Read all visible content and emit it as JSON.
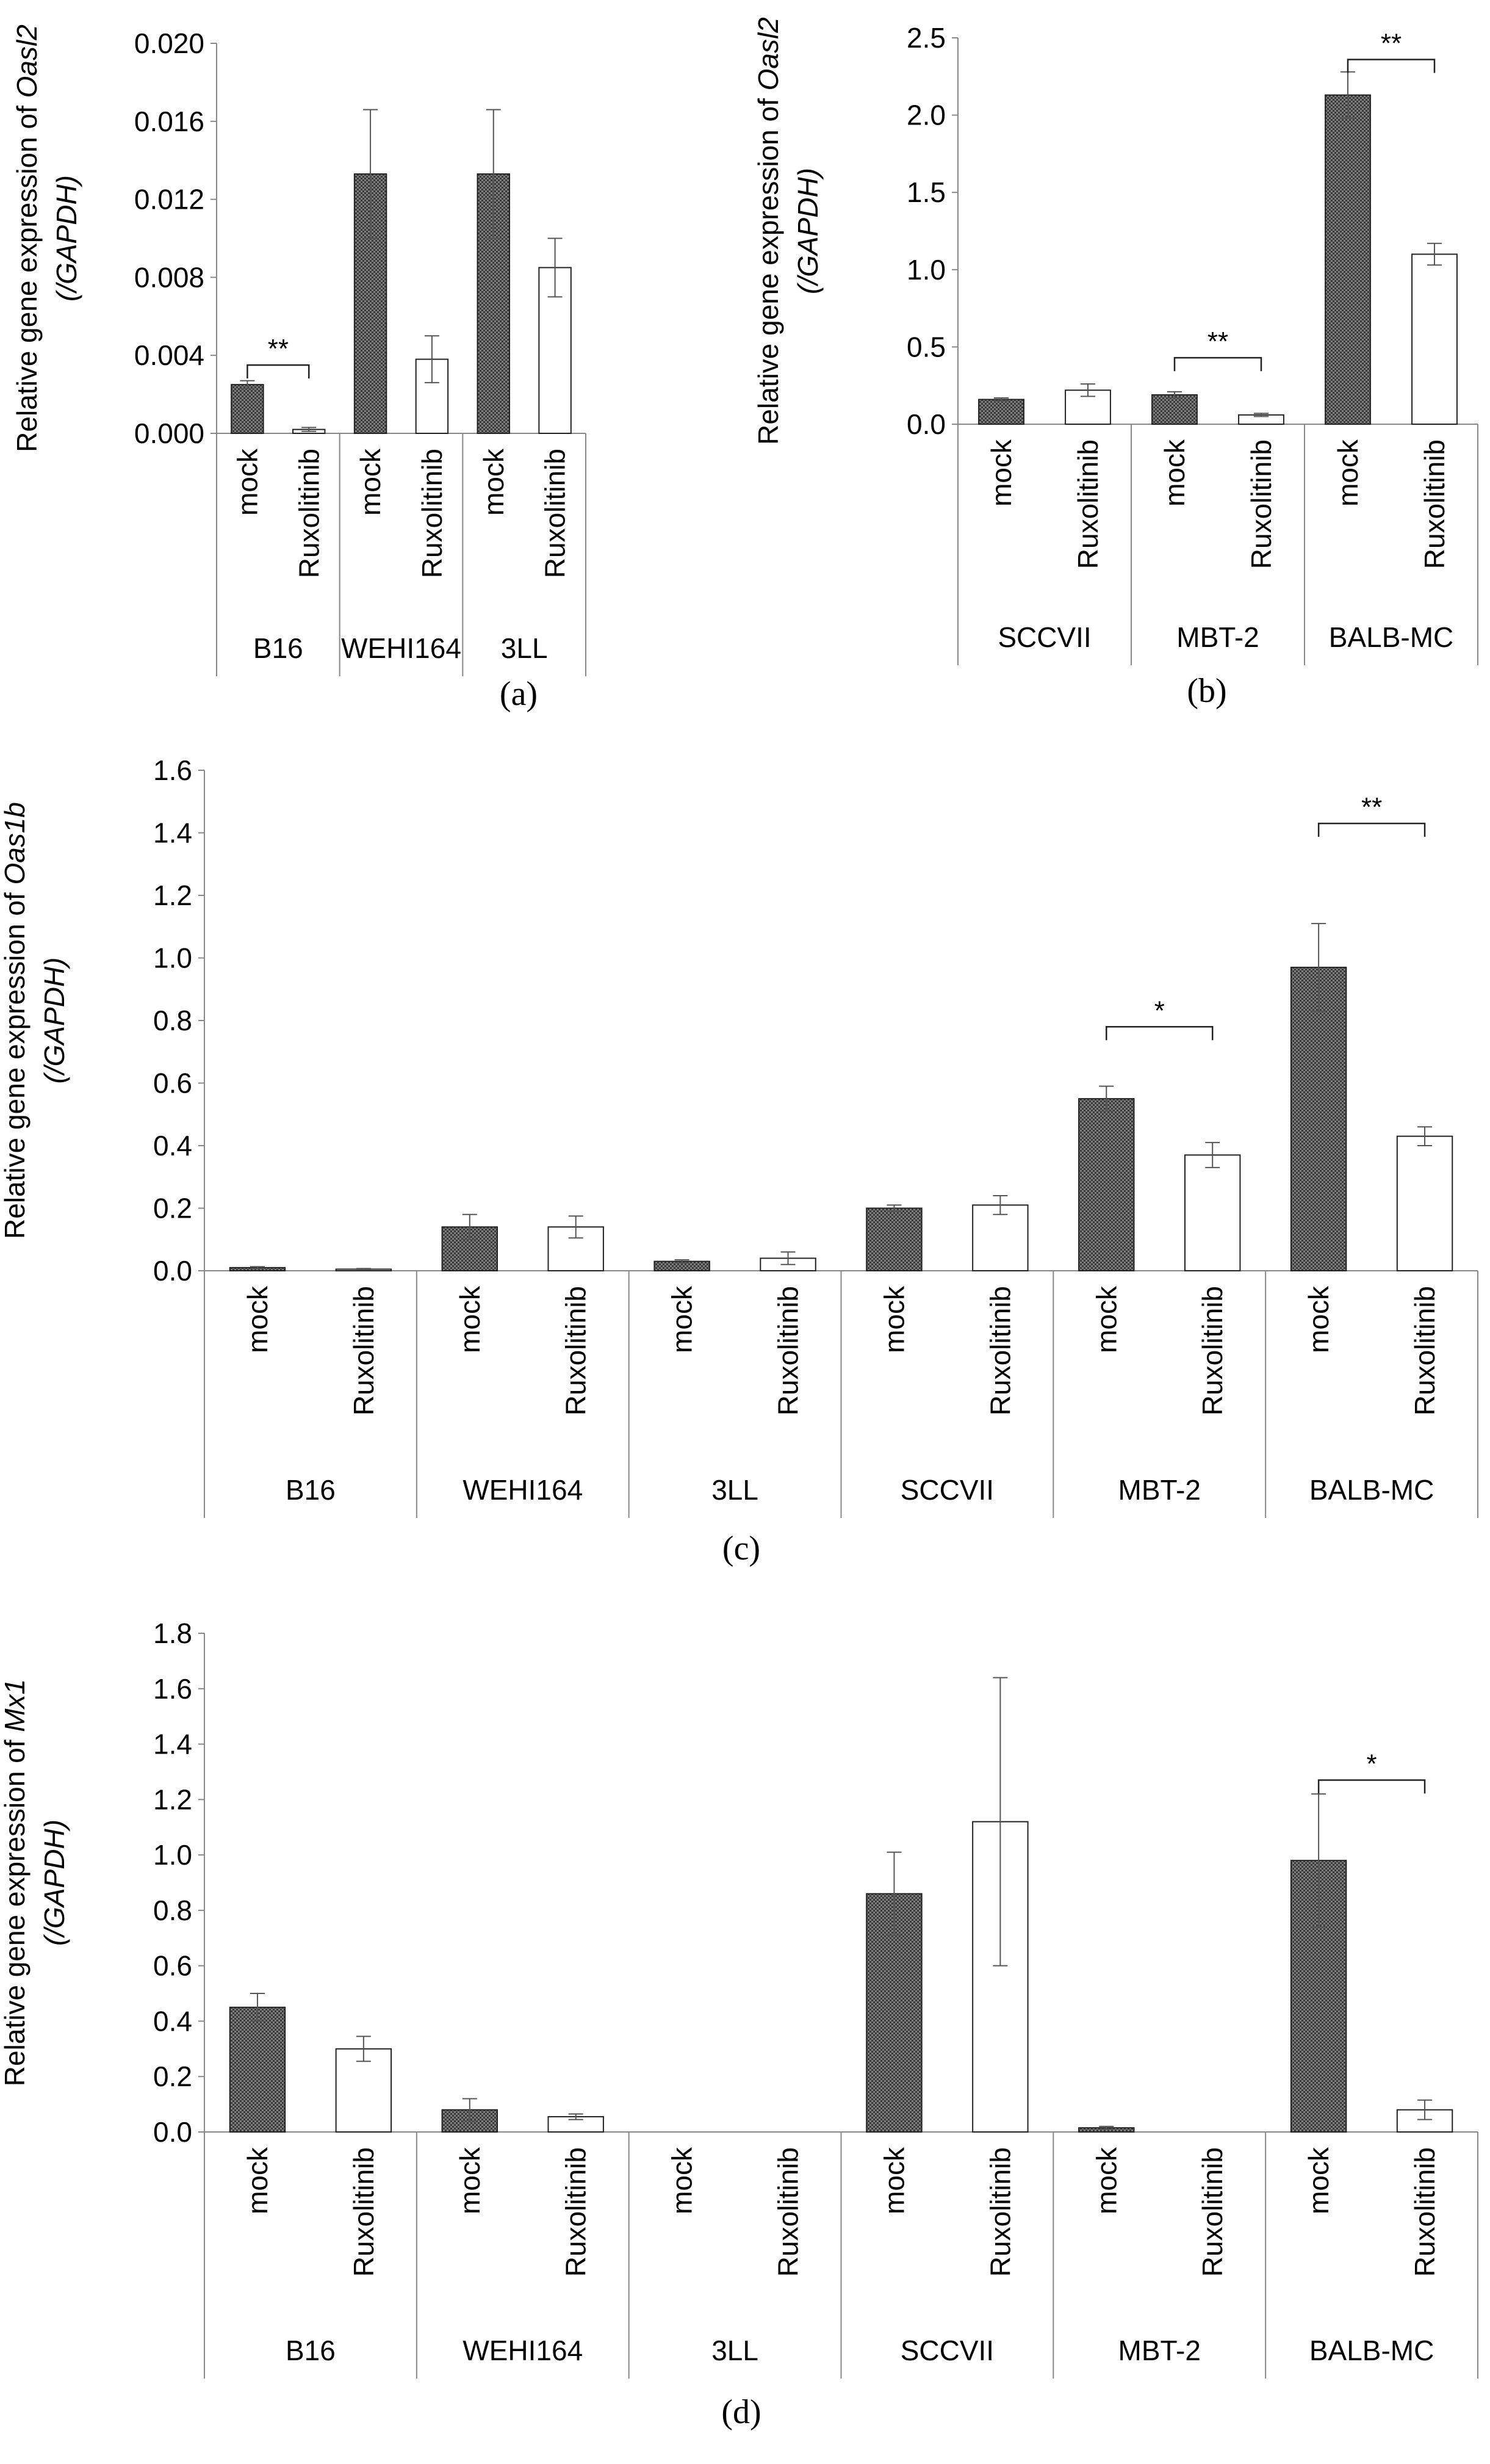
{
  "chart_data": [
    {
      "id": "a",
      "type": "bar",
      "label": "(a)",
      "ylabel_prefix": "Relative gene expression of ",
      "gene": "Oasl2",
      "ylabel_line2": "(/GAPDH)",
      "ylim": [
        0,
        0.02
      ],
      "yticks": [
        "0.000",
        "0.004",
        "0.008",
        "0.012",
        "0.016",
        "0.020"
      ],
      "series_names": [
        "mock",
        "Ruxolitinib"
      ],
      "groups": [
        {
          "name": "B16",
          "values": [
            0.0025,
            0.0002
          ],
          "errors": [
            0.0002,
            0.0001
          ]
        },
        {
          "name": "WEHI164",
          "values": [
            0.0133,
            0.0038
          ],
          "errors": [
            0.0033,
            0.0012
          ]
        },
        {
          "name": "3LL",
          "values": [
            0.0133,
            0.0085
          ],
          "errors": [
            0.0033,
            0.0015
          ]
        }
      ],
      "significance": [
        {
          "group": 0,
          "label": "**",
          "y": 0.0035
        }
      ]
    },
    {
      "id": "b",
      "type": "bar",
      "label": "(b)",
      "ylabel_prefix": "Relative gene expression of ",
      "gene": "Oasl2",
      "ylabel_line2": "(/GAPDH)",
      "ylim": [
        0,
        2.5
      ],
      "yticks": [
        "0.0",
        "0.5",
        "1.0",
        "1.5",
        "2.0",
        "2.5"
      ],
      "series_names": [
        "mock",
        "Ruxolitinib"
      ],
      "groups": [
        {
          "name": "SCCVII",
          "values": [
            0.16,
            0.22
          ],
          "errors": [
            0.01,
            0.04
          ]
        },
        {
          "name": "MBT-2",
          "values": [
            0.19,
            0.06
          ],
          "errors": [
            0.02,
            0.01
          ]
        },
        {
          "name": "BALB-MC",
          "values": [
            2.13,
            1.1
          ],
          "errors": [
            0.15,
            0.07
          ]
        }
      ],
      "significance": [
        {
          "group": 1,
          "label": "**",
          "y": 0.43
        },
        {
          "group": 2,
          "label": "**",
          "y": 2.36
        }
      ]
    },
    {
      "id": "c",
      "type": "bar",
      "label": "(c)",
      "ylabel_prefix": "Relative gene expression of ",
      "gene": "Oas1b",
      "ylabel_line2": "(/GAPDH)",
      "ylim": [
        0,
        1.6
      ],
      "yticks": [
        "0.0",
        "0.2",
        "0.4",
        "0.6",
        "0.8",
        "1.0",
        "1.2",
        "1.4",
        "1.6"
      ],
      "series_names": [
        "mock",
        "Ruxolitinib"
      ],
      "groups": [
        {
          "name": "B16",
          "values": [
            0.01,
            0.005
          ],
          "errors": [
            0.003,
            0.002
          ]
        },
        {
          "name": "WEHI164",
          "values": [
            0.14,
            0.14
          ],
          "errors": [
            0.04,
            0.035
          ]
        },
        {
          "name": "3LL",
          "values": [
            0.03,
            0.04
          ],
          "errors": [
            0.005,
            0.02
          ]
        },
        {
          "name": "SCCVII",
          "values": [
            0.2,
            0.21
          ],
          "errors": [
            0.01,
            0.03
          ]
        },
        {
          "name": "MBT-2",
          "values": [
            0.55,
            0.37
          ],
          "errors": [
            0.04,
            0.04
          ]
        },
        {
          "name": "BALB-MC",
          "values": [
            0.97,
            0.43
          ],
          "errors": [
            0.14,
            0.03
          ]
        }
      ],
      "significance": [
        {
          "group": 4,
          "label": "*",
          "y": 0.78
        },
        {
          "group": 5,
          "label": "**",
          "y": 1.43
        }
      ]
    },
    {
      "id": "d",
      "type": "bar",
      "label": "(d)",
      "ylabel_prefix": "Relative gene expression of ",
      "gene": "Mx1",
      "ylabel_line2": "(/GAPDH)",
      "ylim": [
        0,
        1.8
      ],
      "yticks": [
        "0.0",
        "0.2",
        "0.4",
        "0.6",
        "0.8",
        "1.0",
        "1.2",
        "1.4",
        "1.6",
        "1.8"
      ],
      "series_names": [
        "mock",
        "Ruxolitinib"
      ],
      "groups": [
        {
          "name": "B16",
          "values": [
            0.45,
            0.3
          ],
          "errors": [
            0.05,
            0.045
          ]
        },
        {
          "name": "WEHI164",
          "values": [
            0.08,
            0.055
          ],
          "errors": [
            0.04,
            0.01
          ]
        },
        {
          "name": "3LL",
          "values": [
            0,
            0
          ],
          "errors": [
            0,
            0
          ]
        },
        {
          "name": "SCCVII",
          "values": [
            0.86,
            1.12
          ],
          "errors": [
            0.15,
            0.52
          ]
        },
        {
          "name": "MBT-2",
          "values": [
            0.015,
            0
          ],
          "errors": [
            0.005,
            0
          ]
        },
        {
          "name": "BALB-MC",
          "values": [
            0.98,
            0.08
          ],
          "errors": [
            0.24,
            0.035
          ]
        }
      ],
      "significance": [
        {
          "group": 5,
          "label": "*",
          "y": 1.27
        }
      ]
    }
  ]
}
